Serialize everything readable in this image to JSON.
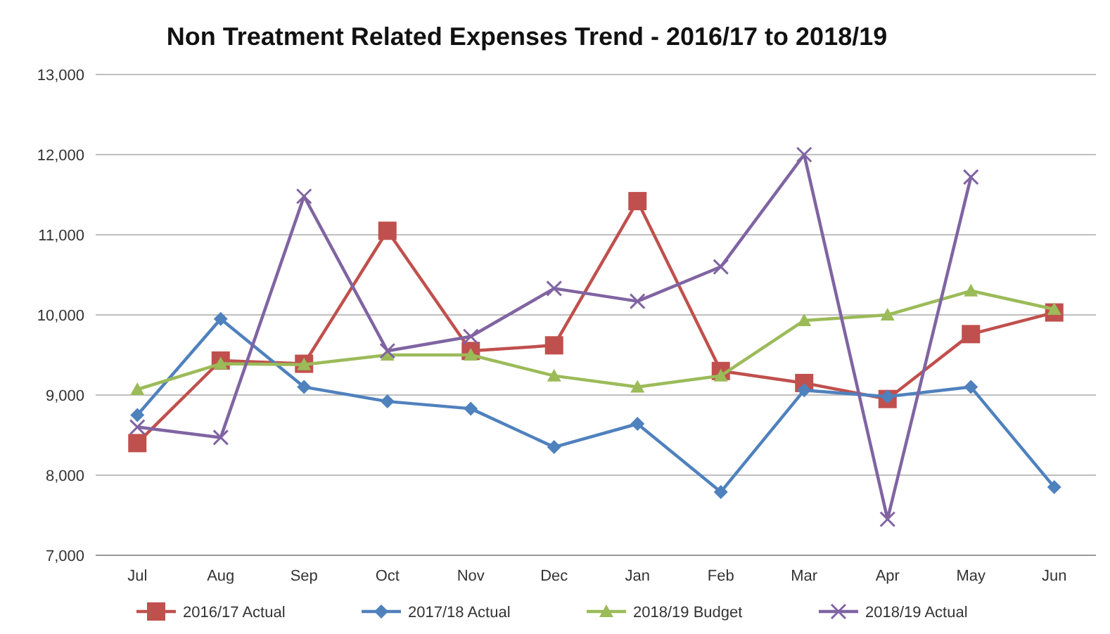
{
  "chart_data": {
    "type": "line",
    "title": "Non Treatment Related Expenses Trend - 2016/17 to 2018/19",
    "categories": [
      "Jul",
      "Aug",
      "Sep",
      "Oct",
      "Nov",
      "Dec",
      "Jan",
      "Feb",
      "Mar",
      "Apr",
      "May",
      "Jun"
    ],
    "series": [
      {
        "name": "2016/17 Actual",
        "color": "#c0504d",
        "marker": "square",
        "values": [
          8400,
          9430,
          9390,
          11050,
          9550,
          9620,
          11420,
          9300,
          9150,
          8950,
          9760,
          10030
        ]
      },
      {
        "name": "2017/18 Actual",
        "color": "#4f81bd",
        "marker": "diamond",
        "values": [
          8750,
          9950,
          9100,
          8920,
          8830,
          8350,
          8640,
          7790,
          9060,
          8980,
          9100,
          7850
        ]
      },
      {
        "name": "2018/19 Budget",
        "color": "#9bbb59",
        "marker": "triangle",
        "values": [
          9070,
          9390,
          9380,
          9500,
          9500,
          9240,
          9100,
          9240,
          9930,
          10000,
          10300,
          10070
        ]
      },
      {
        "name": "2018/19 Actual",
        "color": "#8064a2",
        "marker": "cross",
        "values": [
          8600,
          8470,
          11480,
          9550,
          9730,
          10330,
          10170,
          10600,
          12000,
          7450,
          11720,
          null
        ]
      }
    ],
    "ylim": [
      7000,
      13000
    ],
    "yticks": [
      {
        "value": 7000,
        "label": "7,000"
      },
      {
        "value": 8000,
        "label": "8,000"
      },
      {
        "value": 9000,
        "label": "9,000"
      },
      {
        "value": 10000,
        "label": "10,000"
      },
      {
        "value": 11000,
        "label": "11,000"
      },
      {
        "value": 12000,
        "label": "12,000"
      },
      {
        "value": 13000,
        "label": "13,000"
      }
    ],
    "grid": "y",
    "legend": "bottom",
    "line_style": "solid"
  }
}
